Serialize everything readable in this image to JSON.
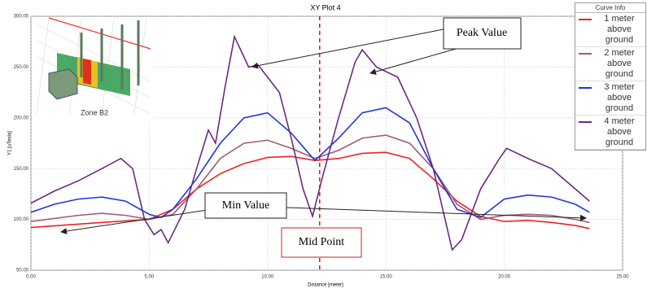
{
  "chart_data": {
    "type": "line",
    "title": "XY Plot 4",
    "x_label": "Distance [meter]",
    "y_label": "Y1 [uTesla]",
    "xlim": [
      0,
      25
    ],
    "ylim": [
      50,
      300
    ],
    "xticks": [
      {
        "value": 0,
        "label": "0.00"
      },
      {
        "value": 5,
        "label": "5.00"
      },
      {
        "value": 10,
        "label": "10.00"
      },
      {
        "value": 15,
        "label": "15.00"
      },
      {
        "value": 20,
        "label": "20.00"
      },
      {
        "value": 25,
        "label": "25.00"
      }
    ],
    "yticks": [
      {
        "value": 50,
        "label": "50.00"
      },
      {
        "value": 100,
        "label": "100.00"
      },
      {
        "value": 150,
        "label": "150.00"
      },
      {
        "value": 200,
        "label": "200.00"
      },
      {
        "value": 250,
        "label": "250.00"
      },
      {
        "value": 300,
        "label": "300.00"
      }
    ],
    "grid": true,
    "legend_title": "Curve Info",
    "legend_position": "top-right",
    "midline_x": 12.2,
    "annotations": {
      "peak": "Peak Value",
      "min": "Min Value",
      "mid": "Mid Point",
      "inset": "Zone B2"
    },
    "series": [
      {
        "name": "1 meter above ground",
        "color": "#ee2222",
        "x": [
          0,
          3,
          5,
          6,
          7,
          8,
          9,
          10,
          11,
          12,
          13,
          14,
          15,
          16,
          17,
          18,
          19,
          20,
          21,
          22,
          23,
          23.6
        ],
        "values": [
          92,
          97,
          100,
          110,
          130,
          145,
          155,
          161,
          162,
          158,
          160,
          165,
          166,
          160,
          140,
          118,
          103,
          98,
          99,
          97,
          94,
          91
        ]
      },
      {
        "name": "2 meter above ground",
        "color": "#a05a78",
        "x": [
          0,
          2,
          3,
          4,
          5,
          6,
          7,
          8,
          9,
          10,
          11,
          12,
          13,
          14,
          15,
          16,
          17,
          18,
          19,
          20,
          21,
          22,
          23,
          23.6
        ],
        "values": [
          98,
          104,
          106,
          104,
          100,
          105,
          130,
          160,
          175,
          178,
          170,
          160,
          168,
          180,
          183,
          175,
          150,
          115,
          100,
          104,
          105,
          104,
          100,
          97
        ]
      },
      {
        "name": "3 meter above ground",
        "color": "#2233dd",
        "x": [
          0,
          1,
          2,
          3,
          4,
          5,
          5.5,
          6,
          7,
          8,
          9,
          10,
          11,
          12,
          13,
          14,
          15,
          16,
          17,
          18,
          19,
          20,
          21,
          22,
          23,
          23.6
        ],
        "values": [
          107,
          115,
          120,
          122,
          118,
          105,
          102,
          110,
          140,
          175,
          200,
          205,
          185,
          158,
          180,
          205,
          210,
          195,
          150,
          110,
          102,
          120,
          124,
          122,
          115,
          107
        ]
      },
      {
        "name": "4 meter above ground",
        "color": "#6a2a80",
        "x": [
          0,
          1,
          2,
          3,
          3.8,
          4.3,
          4.8,
          5.2,
          5.5,
          5.8,
          6.5,
          7,
          7.5,
          7.8,
          8.2,
          8.6,
          9.2,
          9.6,
          10.5,
          11,
          11.5,
          11.9,
          12.3,
          13,
          13.7,
          14,
          14.6,
          15.5,
          16.3,
          17,
          17.5,
          17.8,
          18.2,
          19,
          19.8,
          20.1,
          21,
          22,
          23,
          23.6
        ],
        "values": [
          116,
          128,
          138,
          150,
          160,
          150,
          100,
          85,
          90,
          77,
          110,
          150,
          188,
          175,
          230,
          280,
          250,
          252,
          225,
          180,
          130,
          103,
          140,
          200,
          255,
          267,
          250,
          240,
          200,
          150,
          100,
          70,
          80,
          130,
          160,
          170,
          160,
          150,
          130,
          118
        ]
      }
    ]
  }
}
